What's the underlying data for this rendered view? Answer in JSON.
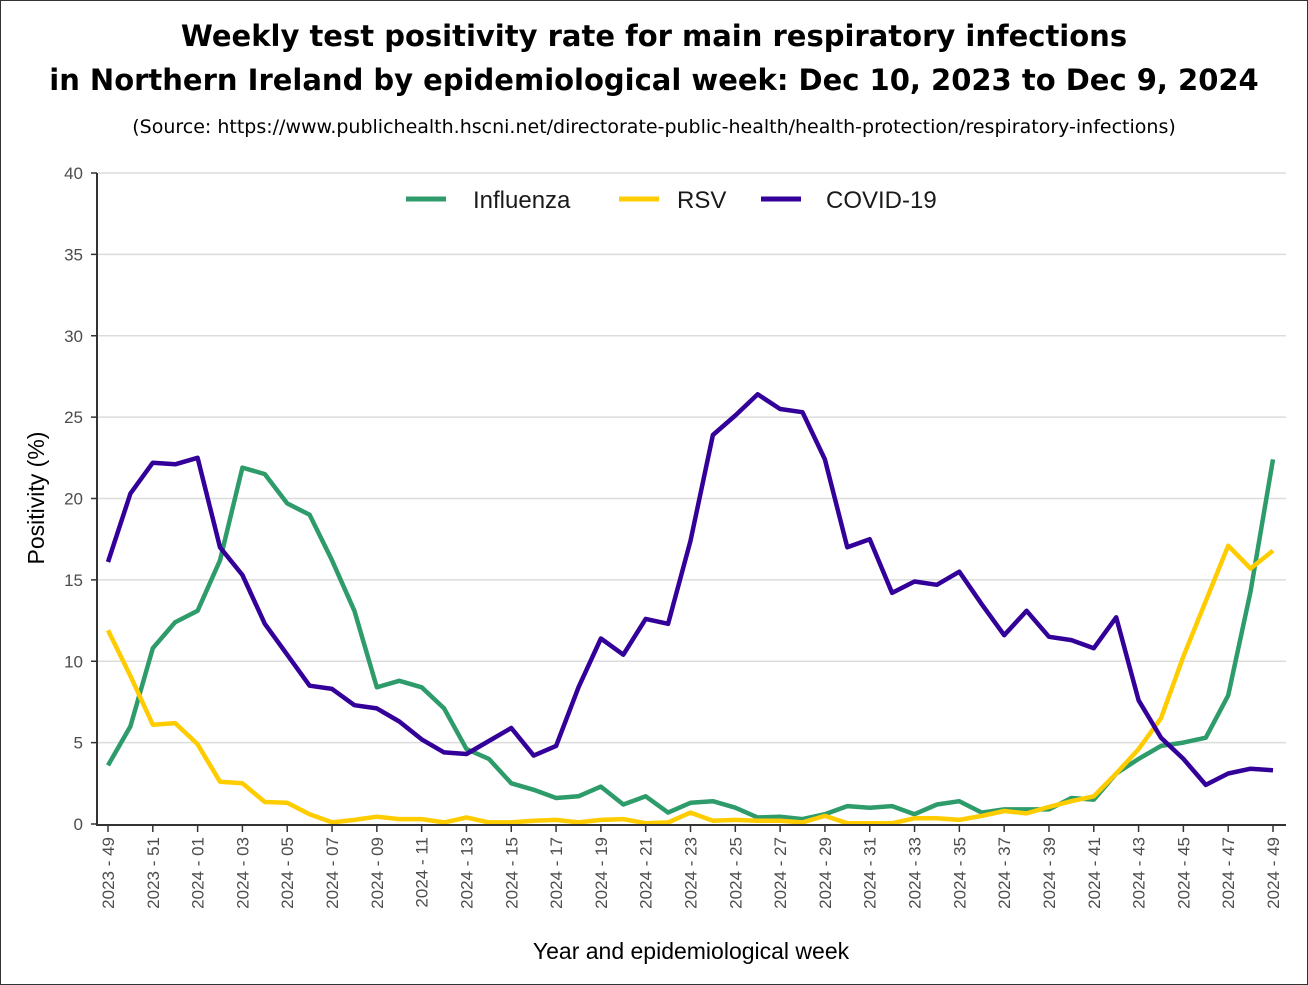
{
  "chart_data": {
    "type": "line",
    "title": "Weekly test positivity rate for main respiratory infections",
    "title_line2": "in Northern Ireland by epidemiological week: Dec 10, 2023 to Dec 9, 2024",
    "subtitle": "(Source: https://www.publichealth.hscni.net/directorate-public-health/health-protection/respiratory-infections)",
    "xlabel": "Year and epidemiological week",
    "ylabel": "Positivity (%)",
    "ylim": [
      0,
      40
    ],
    "yticks": [
      0,
      5,
      10,
      15,
      20,
      25,
      30,
      35,
      40
    ],
    "grid": "horizontal",
    "legend_position": "top",
    "x": [
      "2023 - 49",
      "2023 - 50",
      "2023 - 51",
      "2023 - 52",
      "2024 - 01",
      "2024 - 02",
      "2024 - 03",
      "2024 - 04",
      "2024 - 05",
      "2024 - 06",
      "2024 - 07",
      "2024 - 08",
      "2024 - 09",
      "2024 - 10",
      "2024 - 11",
      "2024 - 12",
      "2024 - 13",
      "2024 - 14",
      "2024 - 15",
      "2024 - 16",
      "2024 - 17",
      "2024 - 18",
      "2024 - 19",
      "2024 - 20",
      "2024 - 21",
      "2024 - 22",
      "2024 - 23",
      "2024 - 24",
      "2024 - 25",
      "2024 - 26",
      "2024 - 27",
      "2024 - 28",
      "2024 - 29",
      "2024 - 30",
      "2024 - 31",
      "2024 - 32",
      "2024 - 33",
      "2024 - 34",
      "2024 - 35",
      "2024 - 36",
      "2024 - 37",
      "2024 - 38",
      "2024 - 39",
      "2024 - 40",
      "2024 - 41",
      "2024 - 42",
      "2024 - 43",
      "2024 - 44",
      "2024 - 45",
      "2024 - 46",
      "2024 - 47",
      "2024 - 48",
      "2024 - 49"
    ],
    "xtick_labels": [
      "2023 - 49",
      "2023 - 51",
      "2024 - 01",
      "2024 - 03",
      "2024 - 05",
      "2024 - 07",
      "2024 - 09",
      "2024 - 11",
      "2024 - 13",
      "2024 - 15",
      "2024 - 17",
      "2024 - 19",
      "2024 - 21",
      "2024 - 23",
      "2024 - 25",
      "2024 - 27",
      "2024 - 29",
      "2024 - 31",
      "2024 - 33",
      "2024 - 35",
      "2024 - 37",
      "2024 - 39",
      "2024 - 41",
      "2024 - 43",
      "2024 - 45",
      "2024 - 47",
      "2024 - 49"
    ],
    "series": [
      {
        "name": "Influenza",
        "color": "#2e9b6a",
        "values": [
          3.6,
          6.0,
          10.8,
          12.4,
          13.1,
          16.2,
          21.9,
          21.5,
          19.7,
          19.0,
          16.2,
          13.1,
          8.4,
          8.8,
          8.4,
          7.1,
          4.6,
          4.0,
          2.5,
          2.1,
          1.6,
          1.7,
          2.3,
          1.2,
          1.7,
          0.7,
          1.3,
          1.4,
          1.0,
          0.4,
          0.45,
          0.3,
          0.6,
          1.1,
          1.0,
          1.1,
          0.6,
          1.2,
          1.4,
          0.7,
          0.9,
          0.9,
          0.9,
          1.6,
          1.5,
          3.1,
          4.0,
          4.8,
          5.0,
          5.3,
          7.9,
          14.3,
          22.4
        ]
      },
      {
        "name": "RSV",
        "color": "#ffcc00",
        "values": [
          11.9,
          9.1,
          6.1,
          6.2,
          4.9,
          2.6,
          2.5,
          1.35,
          1.3,
          0.6,
          0.1,
          0.25,
          0.45,
          0.3,
          0.3,
          0.1,
          0.4,
          0.1,
          0.1,
          0.2,
          0.25,
          0.1,
          0.25,
          0.3,
          0.05,
          0.1,
          0.7,
          0.2,
          0.25,
          0.2,
          0.2,
          0.1,
          0.5,
          0.05,
          0.05,
          0.05,
          0.35,
          0.35,
          0.25,
          0.5,
          0.8,
          0.65,
          1.05,
          1.4,
          1.7,
          3.1,
          4.6,
          6.5,
          10.3,
          13.7,
          17.1,
          15.7,
          16.8
        ]
      },
      {
        "name": "COVID-19",
        "color": "#330099",
        "values": [
          16.1,
          20.3,
          22.2,
          22.1,
          22.5,
          17.0,
          15.3,
          12.3,
          10.4,
          8.5,
          8.3,
          7.3,
          7.1,
          6.3,
          5.2,
          4.4,
          4.3,
          5.1,
          5.9,
          4.2,
          4.8,
          8.4,
          11.4,
          10.4,
          12.6,
          12.3,
          17.4,
          23.9,
          25.1,
          26.4,
          25.5,
          25.3,
          22.4,
          17.0,
          17.5,
          14.2,
          14.9,
          14.7,
          15.5,
          13.5,
          11.6,
          13.1,
          11.5,
          11.3,
          10.8,
          12.7,
          7.6,
          5.3,
          4.0,
          2.4,
          3.1,
          3.4,
          3.3
        ]
      }
    ]
  }
}
